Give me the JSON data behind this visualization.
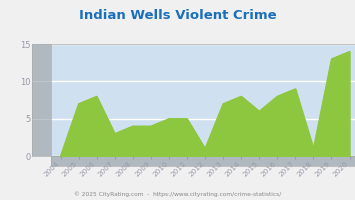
{
  "title": "Indian Wells Violent Crime",
  "years": [
    2004,
    2005,
    2006,
    2007,
    2008,
    2009,
    2010,
    2011,
    2012,
    2013,
    2014,
    2015,
    2016,
    2017,
    2018,
    2019,
    2020
  ],
  "values": [
    0,
    7,
    8,
    3,
    4,
    4,
    5,
    5,
    1,
    7,
    8,
    6,
    8,
    9,
    1,
    13,
    14
  ],
  "ylim": [
    0,
    15
  ],
  "yticks": [
    0,
    5,
    10,
    15
  ],
  "fill_color": "#8dc63f",
  "line_color": "#8dc63f",
  "plot_bg": "#cfe0f0",
  "side_panel_color": "#b0b8c0",
  "outer_bg": "#f0f0f0",
  "title_color": "#1a6fba",
  "tick_color": "#9999aa",
  "footer_text": "© 2025 CityRating.com  -  https://www.cityrating.com/crime-statistics/",
  "footer_color": "#888888",
  "grid_color": "#ffffff",
  "axis_color": "#aaaaaa",
  "side_grid_color": "#c0c8d0"
}
